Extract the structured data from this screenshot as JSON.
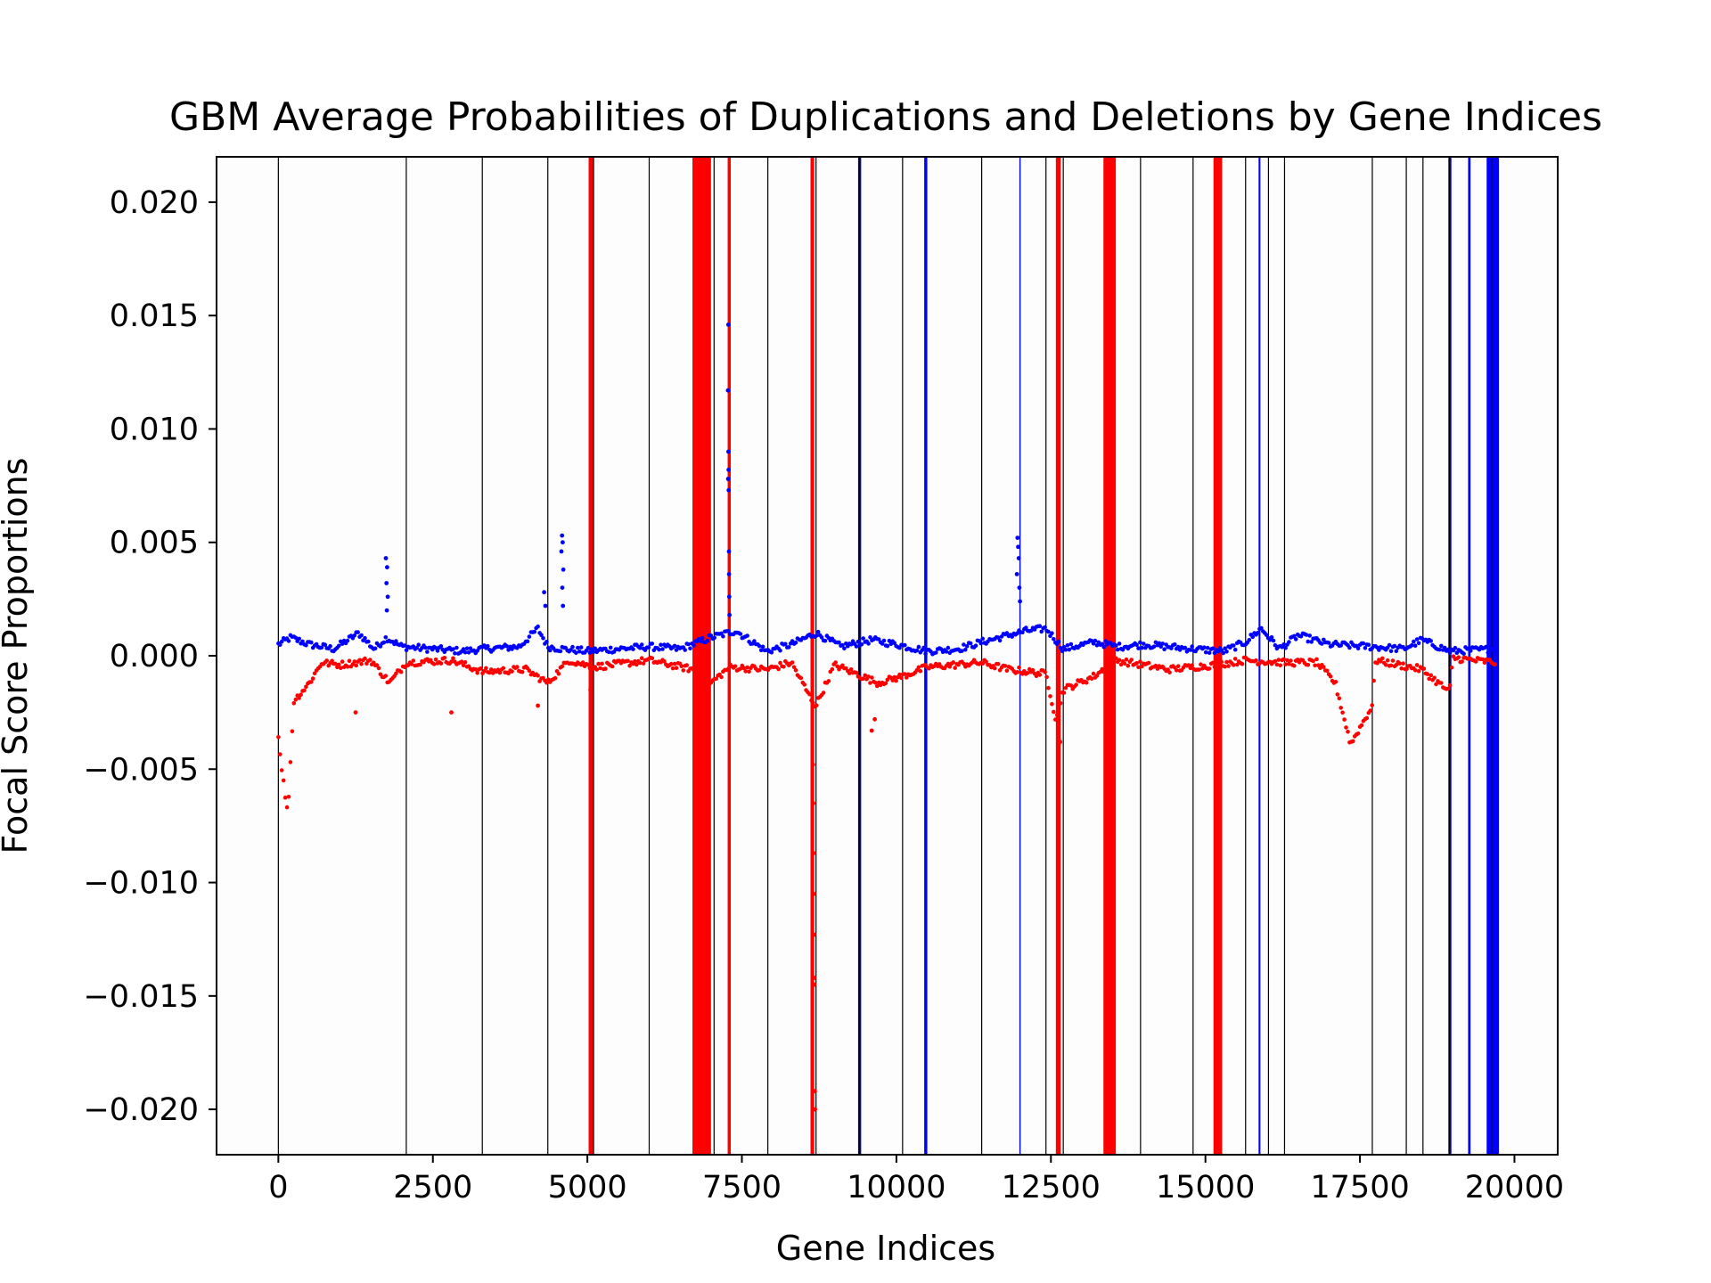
{
  "chart_data": {
    "type": "scatter",
    "title": "GBM Average Probabilities of Duplications and Deletions by Gene Indices",
    "xlabel": "Gene Indices",
    "ylabel": "Focal Score Proportions",
    "xlim": [
      -1000,
      20700
    ],
    "ylim": [
      -0.022,
      0.022
    ],
    "x_ticks": [
      0,
      2500,
      5000,
      7500,
      10000,
      12500,
      15000,
      17500,
      20000
    ],
    "x_tick_labels": [
      "0",
      "2500",
      "5000",
      "7500",
      "10000",
      "12500",
      "15000",
      "17500",
      "20000"
    ],
    "y_ticks": [
      0.02,
      0.015,
      0.01,
      0.005,
      0.0,
      -0.005,
      -0.01,
      -0.015,
      -0.02
    ],
    "y_tick_labels": [
      "0.020",
      "0.015",
      "0.010",
      "0.005",
      "0.000",
      "−0.005",
      "−0.010",
      "−0.015",
      "−0.020"
    ],
    "grid": false,
    "colors": {
      "duplication": "#0000ff",
      "deletion": "#ff0000",
      "boundary": "#000000"
    },
    "chromosome_boundaries": [
      0,
      2070,
      3300,
      4360,
      5100,
      6000,
      7050,
      7920,
      8700,
      9400,
      10100,
      11380,
      12420,
      12700,
      13950,
      14800,
      15650,
      16020,
      16280,
      17700,
      18250,
      18520,
      18950,
      19630
    ],
    "red_bands": [
      [
        5020,
        5100
      ],
      [
        6700,
        7000
      ],
      [
        7270,
        7320
      ],
      [
        8610,
        8670
      ],
      [
        12580,
        12660
      ],
      [
        13350,
        13550
      ],
      [
        15130,
        15270
      ]
    ],
    "blue_bands": [
      [
        9380,
        9430
      ],
      [
        10450,
        10500
      ],
      [
        11990,
        12010
      ],
      [
        15860,
        15890
      ],
      [
        18930,
        18980
      ],
      [
        19250,
        19290
      ],
      [
        19550,
        19750
      ]
    ],
    "series": [
      {
        "name": "",
        "color": "#0000ff",
        "profile": [
          [
            0,
            0.0005
          ],
          [
            200,
            0.0008
          ],
          [
            500,
            0.0005
          ],
          [
            900,
            0.0003
          ],
          [
            1300,
            0.001
          ],
          [
            1550,
            0.0003
          ],
          [
            1750,
            0.0008
          ],
          [
            2000,
            0.0004
          ],
          [
            2500,
            0.0003
          ],
          [
            3000,
            0.0002
          ],
          [
            3300,
            0.0003
          ],
          [
            3900,
            0.0004
          ],
          [
            4200,
            0.0012
          ],
          [
            4360,
            0.0004
          ],
          [
            4600,
            0.0003
          ],
          [
            5000,
            0.0002
          ],
          [
            5500,
            0.0003
          ],
          [
            6000,
            0.0004
          ],
          [
            6500,
            0.0003
          ],
          [
            7000,
            0.0008
          ],
          [
            7400,
            0.0011
          ],
          [
            7900,
            0.0002
          ],
          [
            8300,
            0.0005
          ],
          [
            8700,
            0.001
          ],
          [
            9100,
            0.0004
          ],
          [
            9600,
            0.0007
          ],
          [
            10000,
            0.0005
          ],
          [
            10500,
            0.0002
          ],
          [
            11000,
            0.0003
          ],
          [
            11380,
            0.0006
          ],
          [
            11800,
            0.0009
          ],
          [
            12100,
            0.0011
          ],
          [
            12420,
            0.0012
          ],
          [
            12700,
            0.0003
          ],
          [
            13200,
            0.0006
          ],
          [
            13600,
            0.0004
          ],
          [
            14000,
            0.0005
          ],
          [
            14800,
            0.0003
          ],
          [
            15300,
            0.0002
          ],
          [
            15650,
            0.0006
          ],
          [
            15900,
            0.0012
          ],
          [
            16200,
            0.0003
          ],
          [
            16500,
            0.0009
          ],
          [
            17000,
            0.0005
          ],
          [
            17700,
            0.0004
          ],
          [
            18200,
            0.0003
          ],
          [
            18500,
            0.0007
          ],
          [
            18950,
            0.0002
          ],
          [
            19700,
            0.0003
          ]
        ],
        "spikes": [
          [
            1740,
            0.0043
          ],
          [
            1760,
            0.0039
          ],
          [
            1750,
            0.0032
          ],
          [
            1770,
            0.0026
          ],
          [
            1755,
            0.002
          ],
          [
            4300,
            0.0028
          ],
          [
            4320,
            0.0022
          ],
          [
            4590,
            0.0053
          ],
          [
            4600,
            0.005
          ],
          [
            4580,
            0.0046
          ],
          [
            4610,
            0.0038
          ],
          [
            4595,
            0.003
          ],
          [
            4605,
            0.0022
          ],
          [
            7280,
            0.0146
          ],
          [
            7275,
            0.0117
          ],
          [
            7282,
            0.009
          ],
          [
            7285,
            0.0082
          ],
          [
            7278,
            0.0078
          ],
          [
            7287,
            0.0073
          ],
          [
            7290,
            0.0046
          ],
          [
            7292,
            0.0036
          ],
          [
            7295,
            0.0026
          ],
          [
            7300,
            0.0018
          ],
          [
            11960,
            0.0052
          ],
          [
            11970,
            0.0048
          ],
          [
            11980,
            0.0043
          ],
          [
            11950,
            0.0036
          ],
          [
            11990,
            0.003
          ],
          [
            12000,
            0.0024
          ]
        ]
      },
      {
        "name": "",
        "color": "#ff0000",
        "profile": [
          [
            0,
            -0.0036
          ],
          [
            80,
            -0.0055
          ],
          [
            150,
            -0.007
          ],
          [
            250,
            -0.002
          ],
          [
            500,
            -0.0012
          ],
          [
            700,
            -0.0003
          ],
          [
            1000,
            -0.0004
          ],
          [
            1500,
            -0.0002
          ],
          [
            1800,
            -0.0012
          ],
          [
            2070,
            -0.0003
          ],
          [
            2800,
            -0.0002
          ],
          [
            3300,
            -0.0007
          ],
          [
            4000,
            -0.0006
          ],
          [
            4360,
            -0.0012
          ],
          [
            4700,
            -0.0002
          ],
          [
            5100,
            -0.0005
          ],
          [
            6000,
            -0.0002
          ],
          [
            6700,
            -0.0006
          ],
          [
            7000,
            -0.0012
          ],
          [
            7300,
            -0.0005
          ],
          [
            7920,
            -0.0006
          ],
          [
            8300,
            -0.0003
          ],
          [
            8600,
            -0.0018
          ],
          [
            8700,
            -0.0022
          ],
          [
            9000,
            -0.0004
          ],
          [
            9700,
            -0.0012
          ],
          [
            10100,
            -0.0009
          ],
          [
            10500,
            -0.0005
          ],
          [
            11380,
            -0.0003
          ],
          [
            11800,
            -0.0006
          ],
          [
            12420,
            -0.0008
          ],
          [
            12580,
            -0.0028
          ],
          [
            12700,
            -0.0015
          ],
          [
            13200,
            -0.0009
          ],
          [
            13550,
            -0.0002
          ],
          [
            14400,
            -0.0006
          ],
          [
            14800,
            -0.0005
          ],
          [
            15150,
            -0.0004
          ],
          [
            15650,
            -0.0002
          ],
          [
            16280,
            -0.0003
          ],
          [
            16800,
            -0.0003
          ],
          [
            17100,
            -0.0012
          ],
          [
            17350,
            -0.0039
          ],
          [
            17700,
            -0.0022
          ],
          [
            17750,
            -0.0002
          ],
          [
            18500,
            -0.0006
          ],
          [
            18950,
            -0.0016
          ],
          [
            19000,
            -0.0001
          ],
          [
            19700,
            -0.0003
          ]
        ],
        "spikes": [
          [
            8655,
            -0.0065
          ],
          [
            8660,
            -0.0087
          ],
          [
            8664,
            -0.0105
          ],
          [
            8668,
            -0.0123
          ],
          [
            8672,
            -0.0142
          ],
          [
            8675,
            -0.0145
          ],
          [
            8680,
            -0.0192
          ],
          [
            8684,
            -0.02
          ],
          [
            8650,
            -0.0048
          ],
          [
            1250,
            -0.0025
          ],
          [
            2800,
            -0.0025
          ],
          [
            4200,
            -0.0022
          ],
          [
            9600,
            -0.0033
          ],
          [
            9650,
            -0.0028
          ],
          [
            12650,
            -0.0038
          ],
          [
            5050,
            -0.0015
          ]
        ]
      }
    ]
  }
}
